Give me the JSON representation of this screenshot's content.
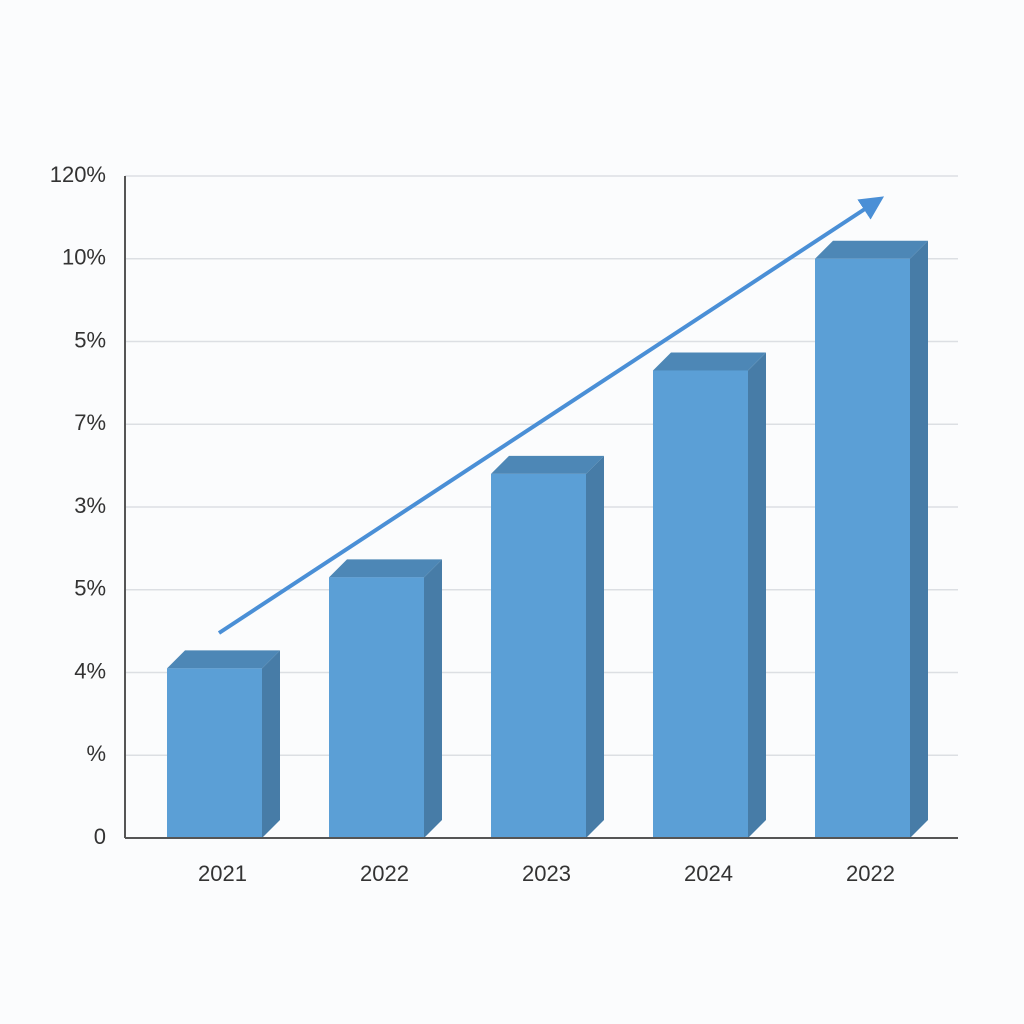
{
  "chart_data": {
    "type": "bar",
    "categories": [
      "2021",
      "2022",
      "2023",
      "2024",
      "2022"
    ],
    "values": [
      2.05,
      3.15,
      4.4,
      5.65,
      7.0
    ],
    "color": "#5b9fd6",
    "ylim": [
      0,
      8
    ],
    "yticks": [
      0,
      {
        "value": 1,
        "label": "%"
      },
      {
        "value": 2,
        "label": "4%"
      },
      {
        "value": 3,
        "label": "5%"
      },
      {
        "value": 4,
        "label": "3%"
      },
      {
        "value": 5,
        "label": "7%"
      },
      {
        "value": 6,
        "label": "5%"
      },
      {
        "value": 7,
        "label": "10%"
      },
      {
        "value": 8,
        "label": "120%"
      }
    ],
    "grid": true
  }
}
